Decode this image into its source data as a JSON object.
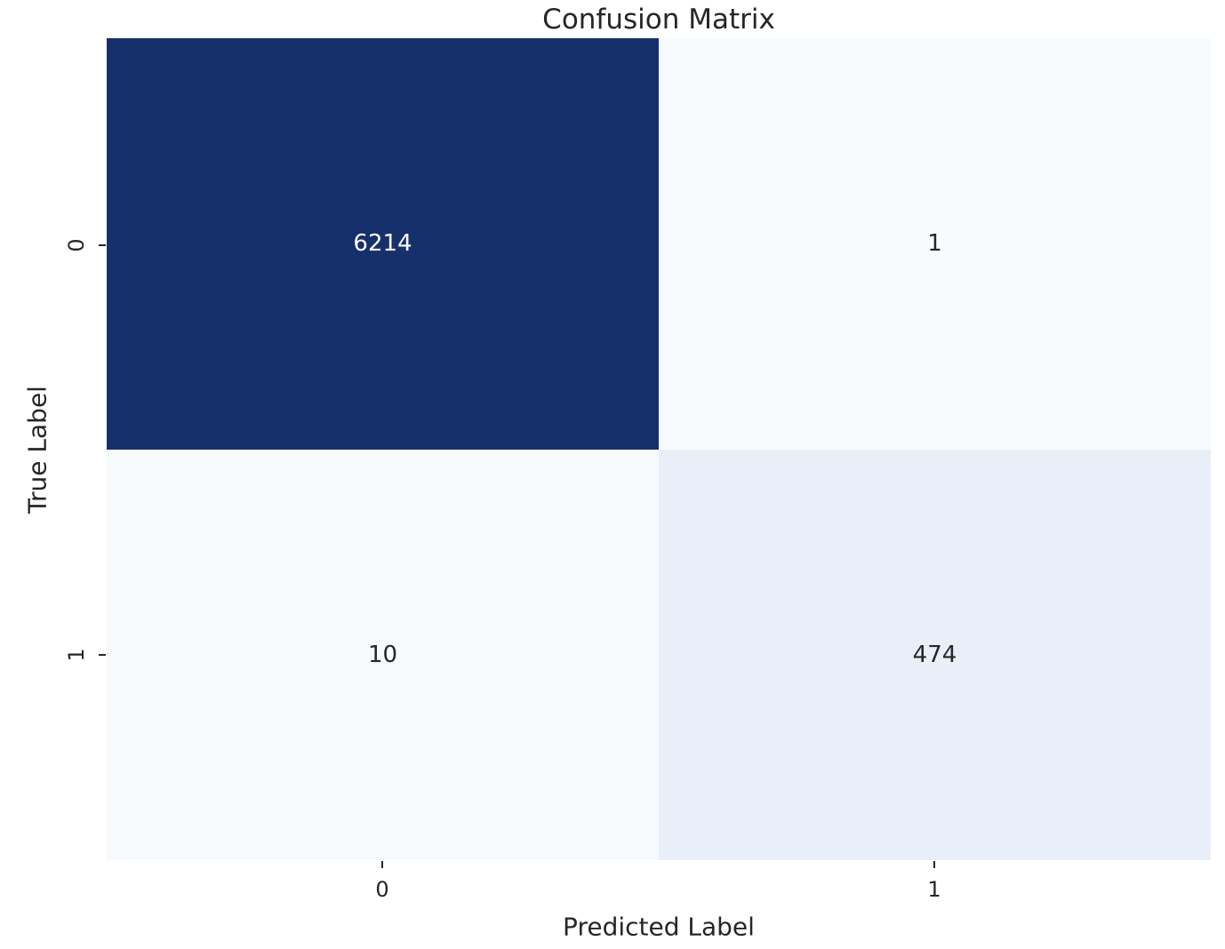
{
  "chart_data": {
    "type": "heatmap",
    "title": "Confusion Matrix",
    "xlabel": "Predicted Label",
    "ylabel": "True Label",
    "x_tick_labels": [
      "0",
      "1"
    ],
    "y_tick_labels": [
      "0",
      "1"
    ],
    "matrix": [
      [
        6214,
        1
      ],
      [
        10,
        474
      ]
    ],
    "colormap": "Blues",
    "value_range": [
      1,
      6214
    ],
    "grid": false,
    "colorbar": false,
    "cell_colors": [
      [
        "#16306b",
        "#f7fbfe"
      ],
      [
        "#f6fafd",
        "#e8eff8"
      ]
    ],
    "cell_text_colors": [
      [
        "#ffffff",
        "#262626"
      ],
      [
        "#262626",
        "#262626"
      ]
    ],
    "text_color": "#262626"
  }
}
